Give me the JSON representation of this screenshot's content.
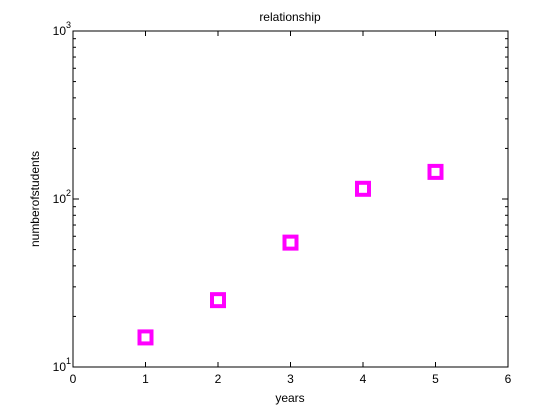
{
  "chart_data": {
    "type": "scatter",
    "title": "relationship",
    "xlabel": "years",
    "ylabel": "numberofstudents",
    "x": [
      1,
      2,
      3,
      4,
      5
    ],
    "y": [
      15,
      25,
      55,
      115,
      145
    ],
    "xlim": [
      0,
      6
    ],
    "ylim": [
      10,
      1000
    ],
    "yscale": "log",
    "xticks": [
      "0",
      "1",
      "2",
      "3",
      "4",
      "5",
      "6"
    ],
    "yticks": [
      {
        "base": "10",
        "exp": "1"
      },
      {
        "base": "10",
        "exp": "2"
      },
      {
        "base": "10",
        "exp": "3"
      }
    ],
    "grid": false,
    "marker": "square",
    "marker_color": "#ff00ff",
    "marker_fill": "#ffffff"
  }
}
